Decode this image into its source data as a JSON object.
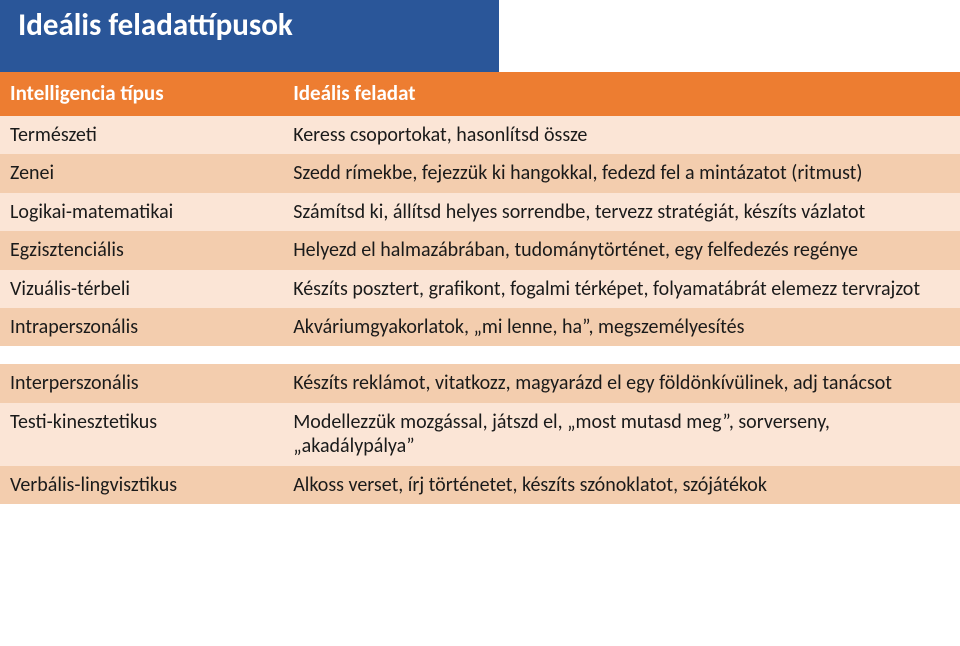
{
  "title": "Ideális feladattípusok",
  "table": {
    "header": {
      "col1": "Intelligencia típus",
      "col2": "Ideális feladat"
    },
    "rows1": [
      {
        "col1": "Természeti",
        "col2": "Keress csoportokat, hasonlítsd össze"
      },
      {
        "col1": "Zenei",
        "col2": "Szedd rímekbe, fejezzük ki hangokkal, fedezd fel a mintázatot (ritmust)"
      },
      {
        "col1": "Logikai-matematikai",
        "col2": "Számítsd ki, állítsd helyes sorrendbe, tervezz stratégiát, készíts vázlatot"
      },
      {
        "col1": "Egzisztenciális",
        "col2": "Helyezd el halmazábrában, tudománytörténet, egy felfedezés regénye"
      },
      {
        "col1": "Vizuális-térbeli",
        "col2": "Készíts posztert, grafikont, fogalmi térképet, folyamatábrát elemezz tervrajzot"
      },
      {
        "col1": "Intraperszonális",
        "col2": "Akváriumgyakorlatok, „mi lenne, ha”, megszemélyesítés"
      }
    ],
    "rows2": [
      {
        "col1": "Interperszonális",
        "col2": "Készíts reklámot, vitatkozz, magyarázd el egy földönkívülinek, adj tanácsot"
      },
      {
        "col1": "Testi-kinesztetikus",
        "col2": "Modellezzük mozgással, játszd el, „most mutasd meg”, sorverseny, „akadálypálya”"
      },
      {
        "col1": "Verbális-lingvisztikus",
        "col2": "Alkoss verset, írj történetet, készíts szónoklatot, szójátékok"
      }
    ]
  },
  "colors": {
    "header_bg": "#ed7d31",
    "band_odd": "#fbe5d6",
    "band_even": "#f3cdae",
    "title_bg": "#2a5699",
    "title_fg": "#ffffff"
  }
}
